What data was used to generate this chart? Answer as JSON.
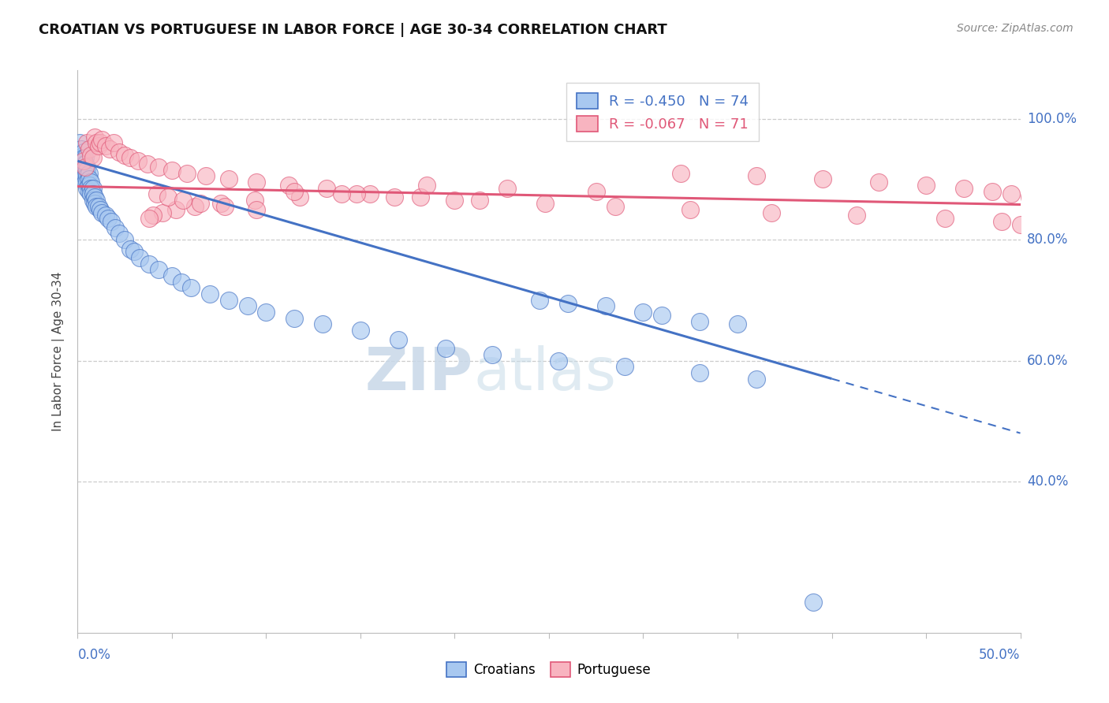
{
  "title": "CROATIAN VS PORTUGUESE IN LABOR FORCE | AGE 30-34 CORRELATION CHART",
  "source": "Source: ZipAtlas.com",
  "ylabel": "In Labor Force | Age 30-34",
  "legend_croatians": "Croatians",
  "legend_portuguese": "Portuguese",
  "r_croatians": "-0.450",
  "n_croatians": "74",
  "r_portuguese": "-0.067",
  "n_portuguese": "71",
  "color_croatians_fill": "#a8c8f0",
  "color_croatians_edge": "#4472c4",
  "color_portuguese_fill": "#f8b4c0",
  "color_portuguese_edge": "#e05878",
  "color_line_croatians": "#4472c4",
  "color_line_portuguese": "#e05878",
  "xlim": [
    0.0,
    0.5
  ],
  "ylim": [
    0.15,
    1.08
  ],
  "yticks": [
    0.4,
    0.6,
    0.8,
    1.0
  ],
  "ytick_labels": [
    "40.0%",
    "60.0%",
    "80.0%",
    "100.0%"
  ],
  "xtick_left_label": "0.0%",
  "xtick_right_label": "50.0%",
  "watermark_zip": "ZIP",
  "watermark_atlas": "atlas",
  "croatians_x": [
    0.001,
    0.001,
    0.002,
    0.002,
    0.002,
    0.002,
    0.003,
    0.003,
    0.003,
    0.003,
    0.003,
    0.004,
    0.004,
    0.004,
    0.004,
    0.004,
    0.005,
    0.005,
    0.005,
    0.005,
    0.005,
    0.006,
    0.006,
    0.006,
    0.006,
    0.007,
    0.007,
    0.007,
    0.008,
    0.008,
    0.008,
    0.009,
    0.009,
    0.01,
    0.01,
    0.011,
    0.012,
    0.013,
    0.015,
    0.016,
    0.018,
    0.02,
    0.022,
    0.025,
    0.028,
    0.03,
    0.033,
    0.038,
    0.043,
    0.05,
    0.055,
    0.06,
    0.07,
    0.08,
    0.09,
    0.1,
    0.115,
    0.13,
    0.15,
    0.17,
    0.195,
    0.22,
    0.255,
    0.29,
    0.33,
    0.36,
    0.245,
    0.26,
    0.28,
    0.3,
    0.31,
    0.33,
    0.35,
    0.39
  ],
  "croatians_y": [
    0.96,
    0.94,
    0.95,
    0.92,
    0.93,
    0.91,
    0.94,
    0.945,
    0.935,
    0.925,
    0.915,
    0.935,
    0.925,
    0.915,
    0.905,
    0.895,
    0.92,
    0.915,
    0.905,
    0.895,
    0.885,
    0.91,
    0.9,
    0.89,
    0.88,
    0.895,
    0.885,
    0.875,
    0.885,
    0.875,
    0.865,
    0.87,
    0.86,
    0.865,
    0.855,
    0.855,
    0.85,
    0.845,
    0.84,
    0.835,
    0.83,
    0.82,
    0.81,
    0.8,
    0.785,
    0.78,
    0.77,
    0.76,
    0.75,
    0.74,
    0.73,
    0.72,
    0.71,
    0.7,
    0.69,
    0.68,
    0.67,
    0.66,
    0.65,
    0.635,
    0.62,
    0.61,
    0.6,
    0.59,
    0.58,
    0.57,
    0.7,
    0.695,
    0.69,
    0.68,
    0.675,
    0.665,
    0.66,
    0.2
  ],
  "portuguese_x": [
    0.003,
    0.004,
    0.005,
    0.006,
    0.007,
    0.008,
    0.009,
    0.01,
    0.011,
    0.012,
    0.013,
    0.015,
    0.017,
    0.019,
    0.022,
    0.025,
    0.028,
    0.032,
    0.037,
    0.043,
    0.05,
    0.058,
    0.068,
    0.08,
    0.095,
    0.112,
    0.132,
    0.155,
    0.182,
    0.213,
    0.248,
    0.285,
    0.325,
    0.368,
    0.413,
    0.46,
    0.49,
    0.5,
    0.51,
    0.515,
    0.505,
    0.495,
    0.485,
    0.47,
    0.45,
    0.425,
    0.395,
    0.36,
    0.32,
    0.275,
    0.228,
    0.185,
    0.148,
    0.118,
    0.094,
    0.076,
    0.062,
    0.052,
    0.045,
    0.04,
    0.038,
    0.042,
    0.048,
    0.056,
    0.065,
    0.078,
    0.095,
    0.115,
    0.14,
    0.168,
    0.2
  ],
  "portuguese_y": [
    0.93,
    0.92,
    0.96,
    0.95,
    0.94,
    0.935,
    0.97,
    0.96,
    0.955,
    0.96,
    0.965,
    0.955,
    0.95,
    0.96,
    0.945,
    0.94,
    0.935,
    0.93,
    0.925,
    0.92,
    0.915,
    0.91,
    0.905,
    0.9,
    0.895,
    0.89,
    0.885,
    0.875,
    0.87,
    0.865,
    0.86,
    0.855,
    0.85,
    0.845,
    0.84,
    0.835,
    0.83,
    0.825,
    0.82,
    0.815,
    0.87,
    0.875,
    0.88,
    0.885,
    0.89,
    0.895,
    0.9,
    0.905,
    0.91,
    0.88,
    0.885,
    0.89,
    0.875,
    0.87,
    0.865,
    0.86,
    0.855,
    0.85,
    0.845,
    0.84,
    0.835,
    0.875,
    0.87,
    0.865,
    0.86,
    0.855,
    0.85,
    0.88,
    0.875,
    0.87,
    0.865
  ]
}
